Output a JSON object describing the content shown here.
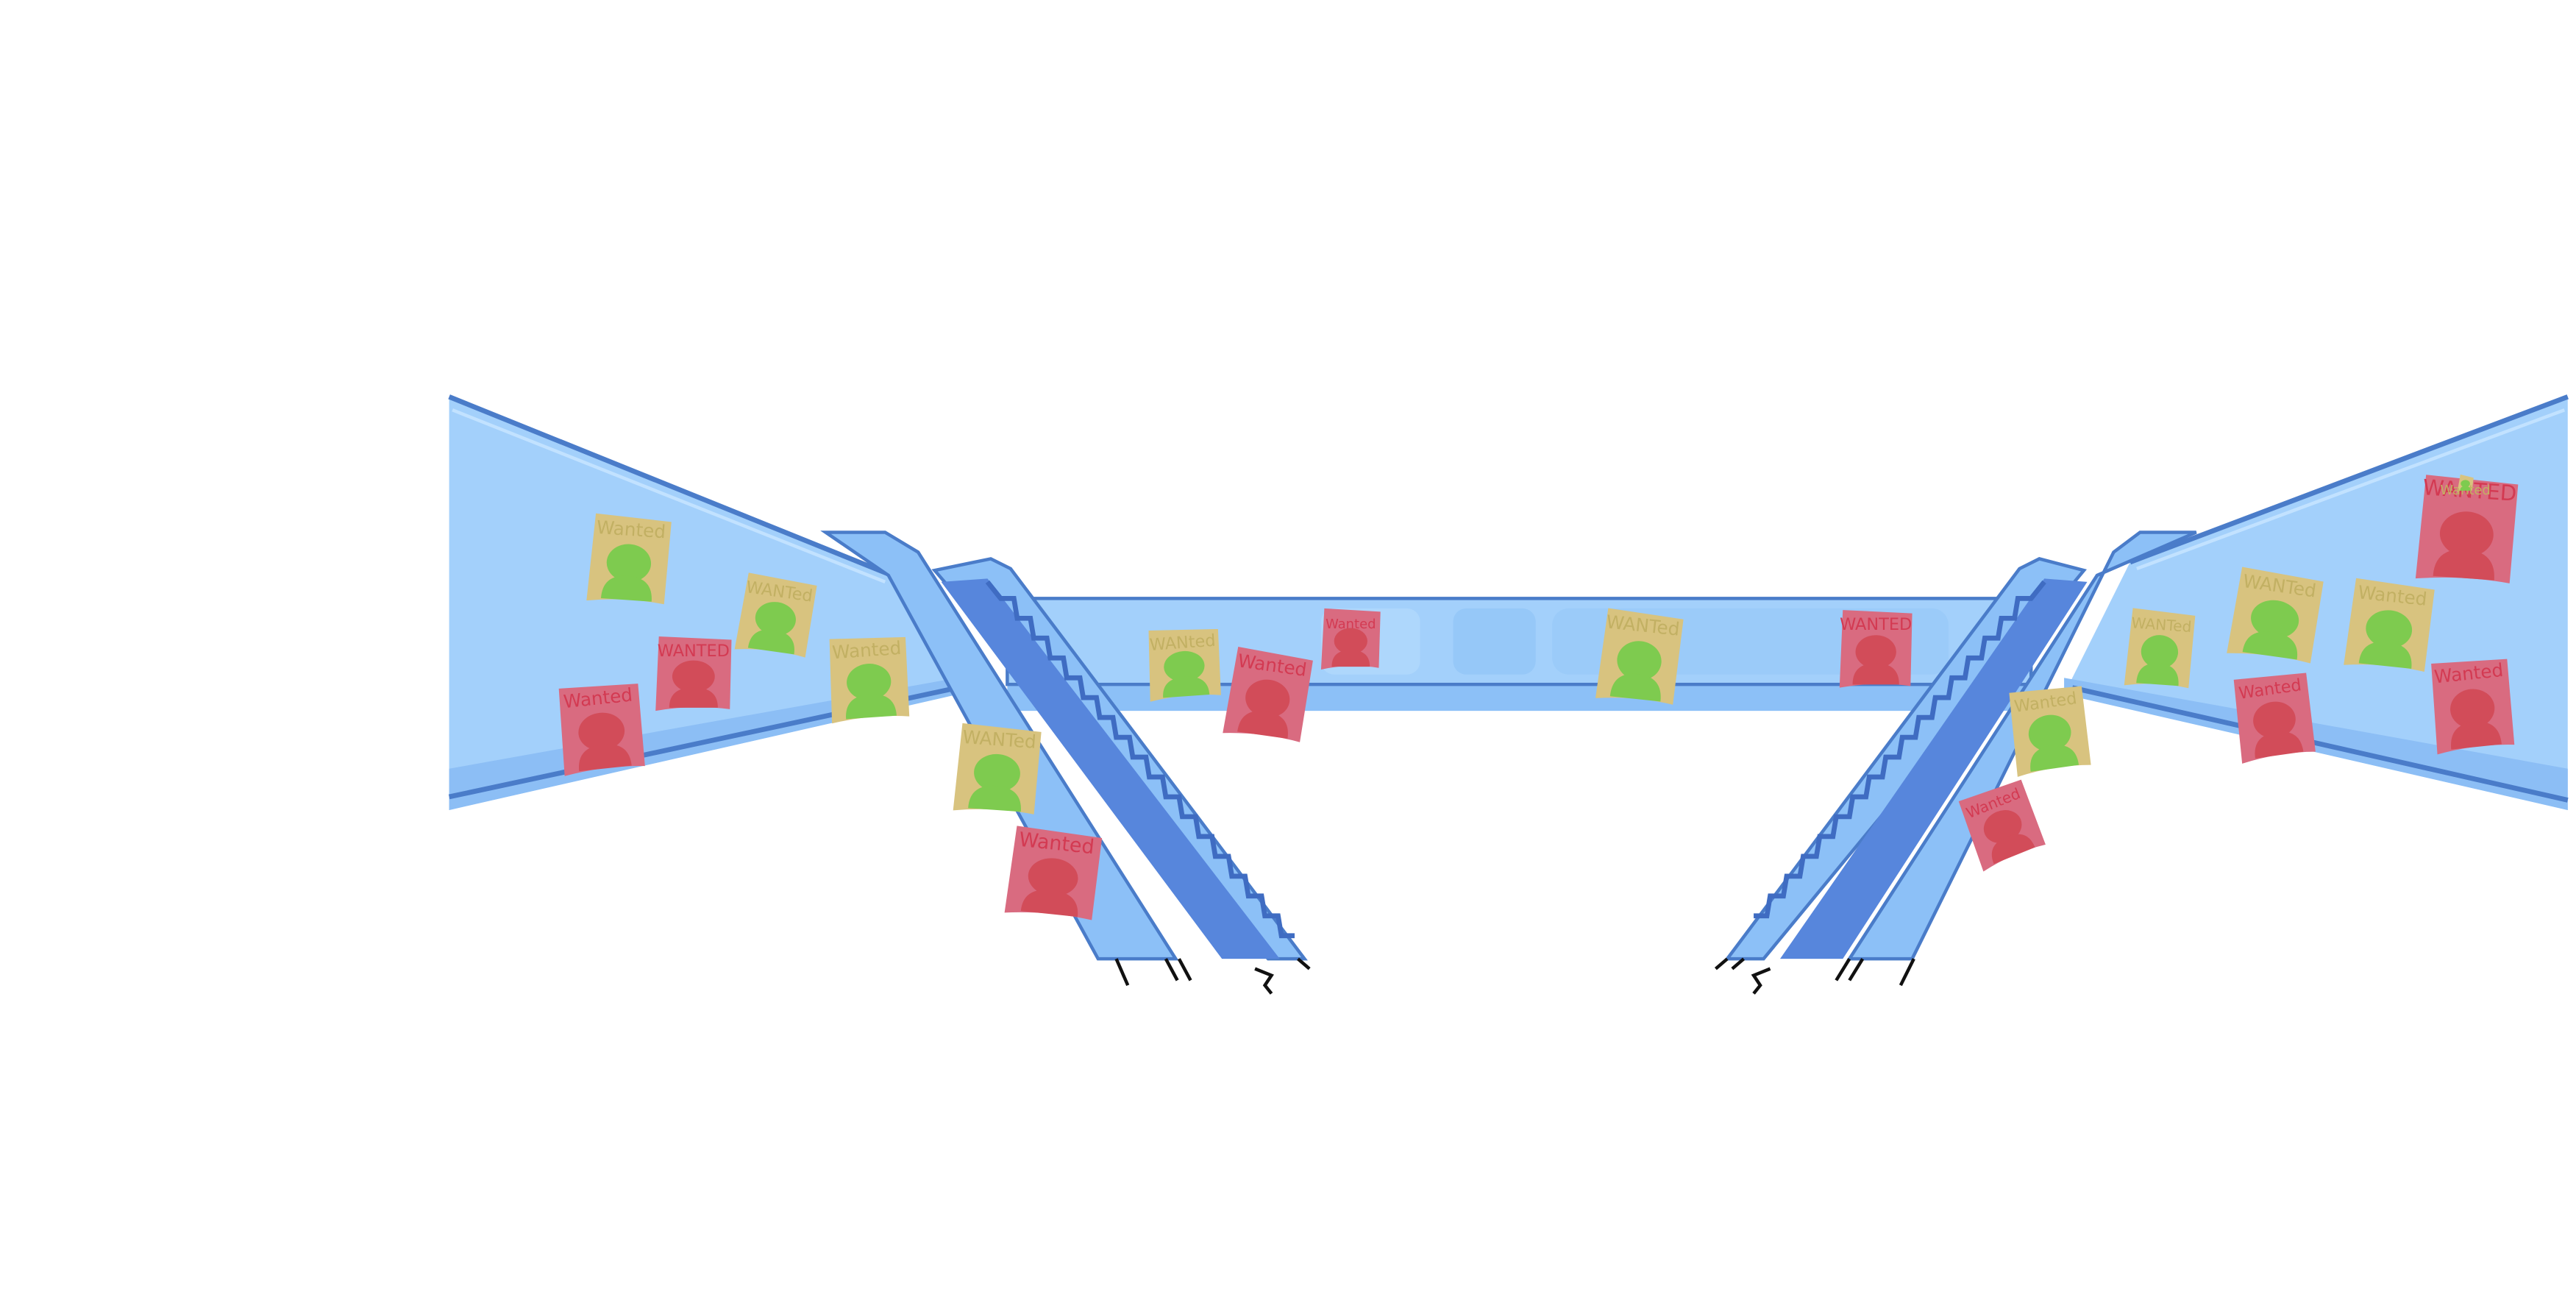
{
  "scene": {
    "title": "Escalator bridge with wanted posters",
    "colors": {
      "background": "#ffffff",
      "wall_light": "#a8d3fb",
      "wall_mid": "#8fc2f6",
      "wall_edge": "#4a7cc9",
      "rail": "#7db8f3",
      "steps": "#5786dc",
      "poster_tan": "#d8c37f",
      "poster_pink": "#d96b80",
      "silhouette_green": "#7ecb4f",
      "silhouette_red": "#d24c59",
      "label_red": "#d33a52",
      "label_tan": "#c2b063",
      "ground_line": "#111111"
    }
  },
  "posters": [
    {
      "label": "Wanted",
      "style": "tan-green"
    },
    {
      "label": "WANTed",
      "style": "tan-green"
    },
    {
      "label": "WANTED",
      "style": "pink-red"
    },
    {
      "label": "Wanted",
      "style": "tan-green"
    },
    {
      "label": "Wanted",
      "style": "pink-red"
    },
    {
      "label": "WANTed",
      "style": "tan-green"
    },
    {
      "label": "Wanted",
      "style": "pink-red"
    },
    {
      "label": "WANted",
      "style": "tan-green"
    },
    {
      "label": "Wanted",
      "style": "pink-red"
    },
    {
      "label": "Wanted",
      "style": "pink-red"
    },
    {
      "label": "WANTed",
      "style": "tan-green"
    },
    {
      "label": "WANTED",
      "style": "pink-red"
    },
    {
      "label": "Wanted",
      "style": "tan-green"
    },
    {
      "label": "Wanted",
      "style": "pink-red"
    },
    {
      "label": "WANTed",
      "style": "tan-green"
    },
    {
      "label": "WANTed",
      "style": "tan-green"
    },
    {
      "label": "Wanted",
      "style": "pink-red"
    },
    {
      "label": "Wanted",
      "style": "tan-green"
    },
    {
      "label": "WANTED",
      "style": "pink-red"
    },
    {
      "label": "Wanted",
      "style": "pink-red"
    },
    {
      "label": "Wanted",
      "style": "tan-green"
    }
  ]
}
